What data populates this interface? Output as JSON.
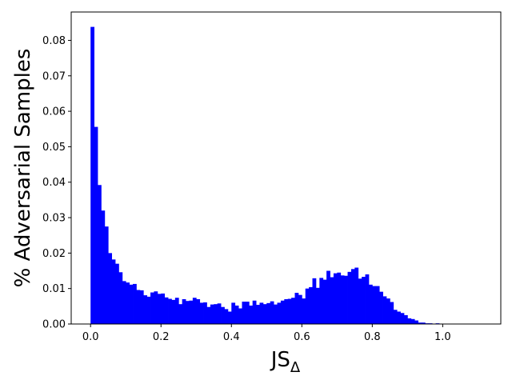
{
  "chart_data": {
    "type": "bar",
    "title": "",
    "xlabel": "JS",
    "xlabel_subscript": "Δ",
    "ylabel": "% Adversarial Samples",
    "xlim": [
      -0.055,
      1.165
    ],
    "ylim": [
      0,
      0.088
    ],
    "grid": false,
    "legend": "none",
    "bar_color": "#0000ff",
    "bin_start": 0.0,
    "bin_width": 0.01,
    "xticks": [
      0.0,
      0.2,
      0.4,
      0.6,
      0.8,
      1.0
    ],
    "xtick_labels": [
      "0.0",
      "0.2",
      "0.4",
      "0.6",
      "0.8",
      "1.0"
    ],
    "yticks": [
      0.0,
      0.01,
      0.02,
      0.03,
      0.04,
      0.05,
      0.06,
      0.07,
      0.08
    ],
    "ytick_labels": [
      "0.00",
      "0.01",
      "0.02",
      "0.03",
      "0.04",
      "0.05",
      "0.06",
      "0.07",
      "0.08"
    ],
    "values": [
      0.0838,
      0.0556,
      0.0392,
      0.032,
      0.0275,
      0.02,
      0.0182,
      0.017,
      0.0146,
      0.0121,
      0.0117,
      0.0111,
      0.0113,
      0.0096,
      0.0095,
      0.0081,
      0.0077,
      0.0089,
      0.0092,
      0.0085,
      0.0086,
      0.0075,
      0.0071,
      0.0068,
      0.0074,
      0.0056,
      0.007,
      0.0065,
      0.0066,
      0.0074,
      0.007,
      0.006,
      0.0061,
      0.0048,
      0.0055,
      0.0056,
      0.0058,
      0.0048,
      0.0042,
      0.0035,
      0.006,
      0.0052,
      0.0044,
      0.0063,
      0.0063,
      0.0052,
      0.0066,
      0.0054,
      0.006,
      0.0056,
      0.0059,
      0.0064,
      0.0055,
      0.006,
      0.0066,
      0.007,
      0.0071,
      0.0074,
      0.0088,
      0.0082,
      0.0072,
      0.01,
      0.0104,
      0.0129,
      0.0102,
      0.013,
      0.0125,
      0.015,
      0.0132,
      0.0143,
      0.0145,
      0.0137,
      0.0136,
      0.0147,
      0.0155,
      0.0159,
      0.0128,
      0.0133,
      0.014,
      0.0111,
      0.0107,
      0.0107,
      0.0091,
      0.0078,
      0.0072,
      0.0062,
      0.004,
      0.0035,
      0.0031,
      0.0025,
      0.0016,
      0.0014,
      0.001,
      0.0004,
      0.0004,
      0.0002,
      0.0002,
      0.0001,
      0.0002
    ]
  }
}
